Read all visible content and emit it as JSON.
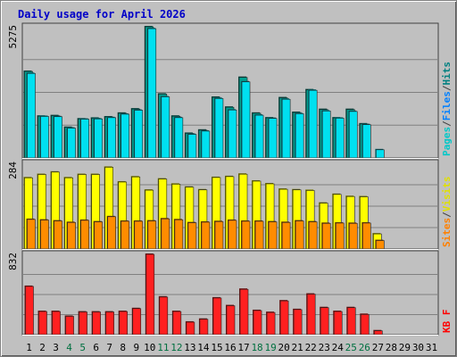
{
  "chart_data": {
    "type": "bar",
    "title": "Daily usage for April 2026",
    "categories": [
      "1",
      "2",
      "3",
      "4",
      "5",
      "6",
      "7",
      "8",
      "9",
      "10",
      "11",
      "12",
      "13",
      "14",
      "15",
      "16",
      "17",
      "18",
      "19",
      "20",
      "21",
      "22",
      "23",
      "24",
      "25",
      "26",
      "27",
      "28",
      "29",
      "30",
      "31"
    ],
    "weekend_days": [
      4,
      5,
      11,
      12,
      18,
      19,
      25,
      26
    ],
    "panels": [
      {
        "name": "top",
        "ymax_label": "5275",
        "ylim": [
          0,
          5275
        ],
        "legend": [
          {
            "text": "Pages",
            "color": "#00c8c8"
          },
          {
            "text": "/",
            "color": "#404040"
          },
          {
            "text": "Files",
            "color": "#0080ff"
          },
          {
            "text": "/",
            "color": "#404040"
          },
          {
            "text": "Hits",
            "color": "#008080"
          }
        ],
        "series": [
          {
            "name": "Hits",
            "color": "#00a090",
            "values": [
              3480,
              1680,
              1700,
              1230,
              1570,
              1600,
              1650,
              1800,
              1970,
              5275,
              2570,
              1680,
              990,
              1120,
              2440,
              2040,
              3240,
              1800,
              1610,
              2420,
              1830,
              2740,
              1950,
              1610,
              1950,
              1370,
              0,
              0,
              0,
              0,
              0
            ]
          },
          {
            "name": "Files",
            "color": "#00e0f0",
            "values": [
              3400,
              1670,
              1660,
              1200,
              1560,
              1570,
              1620,
              1760,
              1920,
              5200,
              2460,
              1620,
              950,
              1080,
              2390,
              1930,
              3060,
              1720,
              1590,
              2360,
              1780,
              2720,
              1890,
              1600,
              1870,
              1340,
              330,
              0,
              0,
              0,
              0
            ]
          }
        ]
      },
      {
        "name": "middle",
        "ymax_label": "284",
        "ylim": [
          0,
          284
        ],
        "legend": [
          {
            "text": "Sites",
            "color": "#ff8000"
          },
          {
            "text": "/",
            "color": "#404040"
          },
          {
            "text": "Visits",
            "color": "#e0e000"
          }
        ],
        "series": [
          {
            "name": "Visits",
            "color": "#ffff00",
            "values": [
              236,
              247,
              255,
              236,
              247,
              247,
              271,
              222,
              239,
              195,
              232,
              215,
              205,
              196,
              237,
              240,
              248,
              225,
              216,
              198,
              196,
              194,
              152,
              181,
              174,
              173,
              50,
              0,
              0,
              0,
              0
            ]
          },
          {
            "name": "Sites",
            "color": "#ff8c00",
            "values": [
              98,
              96,
              93,
              88,
              95,
              90,
              107,
              92,
              92,
              93,
              100,
              97,
              87,
              89,
              91,
              95,
              92,
              92,
              90,
              88,
              93,
              90,
              85,
              86,
              85,
              86,
              28,
              0,
              0,
              0,
              0
            ]
          }
        ]
      },
      {
        "name": "bottom",
        "ymax_label": "832",
        "ylim": [
          0,
          832
        ],
        "legend": [
          {
            "text": "KB F",
            "color": "#ff0000"
          }
        ],
        "series": [
          {
            "name": "KB F",
            "color": "#ff2020",
            "values": [
              500,
              240,
              240,
              190,
              235,
              235,
              235,
              240,
              270,
              832,
              390,
              240,
              130,
              160,
              380,
              300,
              470,
              250,
              230,
              350,
              260,
              420,
              280,
              240,
              280,
              210,
              40,
              0,
              0,
              0,
              0
            ]
          }
        ]
      }
    ]
  }
}
